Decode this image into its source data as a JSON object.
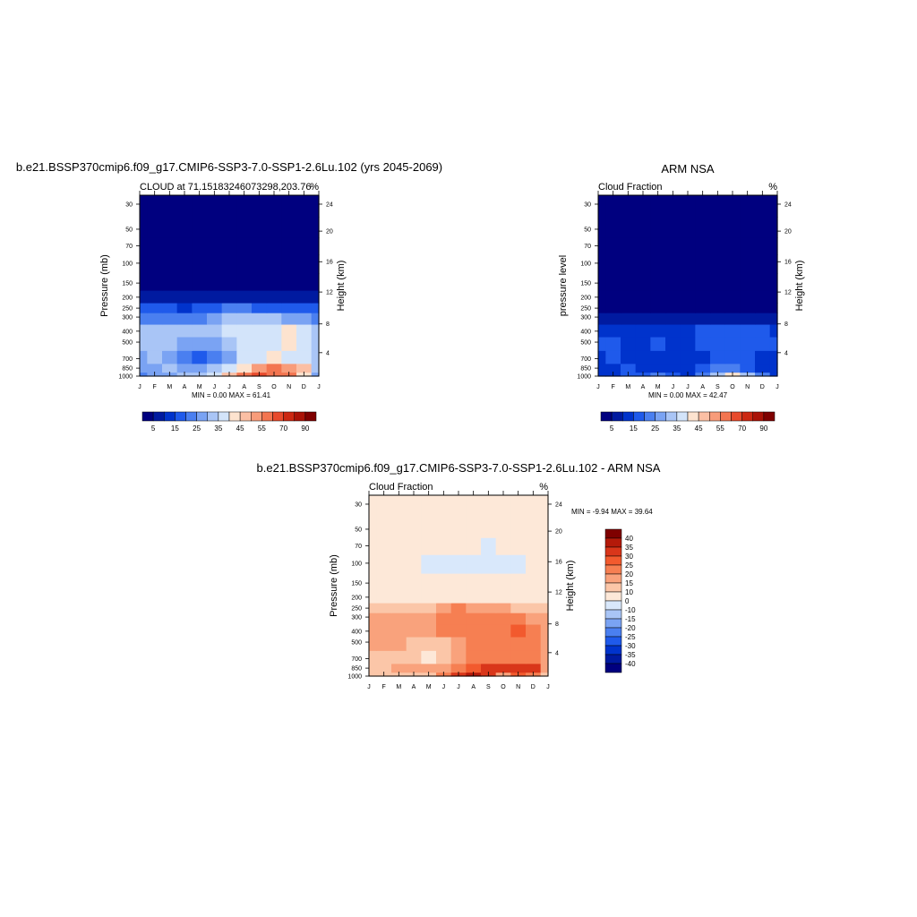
{
  "panels": [
    {
      "title": "b.e21.BSSP370cmip6.f09_g17.CMIP6-SSP3-7.0-SSP1-2.6Lu.102 (yrs 2045-2069)",
      "left_string": "CLOUD at 71.15183246073298,203.76",
      "right_string": "%",
      "ylabel": "Pressure (mb)",
      "ylabel_right": "Height (km)",
      "minmax": "MIN =   0.00 MAX =  61.41"
    },
    {
      "title": "ARM NSA",
      "left_string": "Cloud Fraction",
      "right_string": "%",
      "ylabel": "pressure level",
      "ylabel_right": "Height (km)",
      "minmax": "MIN =   0.00 MAX =  42.47"
    },
    {
      "title": "b.e21.BSSP370cmip6.f09_g17.CMIP6-SSP3-7.0-SSP1-2.6Lu.102 - ARM NSA",
      "left_string": "Cloud Fraction",
      "right_string": "%",
      "ylabel": "Pressure (mb)",
      "ylabel_right": "Height (km)",
      "minmax": "MIN =  -9.94 MAX =  39.64"
    }
  ],
  "axes": {
    "months": [
      "J",
      "F",
      "M",
      "A",
      "M",
      "J",
      "J",
      "A",
      "S",
      "O",
      "N",
      "D",
      "J"
    ],
    "pressure_ticks": [
      "30",
      "50",
      "70",
      "100",
      "150",
      "200",
      "250",
      "300",
      "400",
      "500",
      "700",
      "850",
      "1000"
    ],
    "height_ticks": [
      "24",
      "20",
      "16",
      "12",
      "8",
      "4"
    ]
  },
  "colorbar_abs": {
    "labels": [
      "5",
      "15",
      "25",
      "35",
      "45",
      "55",
      "70",
      "90"
    ],
    "colors": [
      "#00007f",
      "#001aa0",
      "#0033cc",
      "#1f5aeb",
      "#4a7ff0",
      "#7aa3f3",
      "#a9c5f6",
      "#d3e4fa",
      "#fde3cf",
      "#fbbfa4",
      "#f89c7a",
      "#f37550",
      "#e84a2c",
      "#cc2812",
      "#aa1207",
      "#7f0000"
    ]
  },
  "colorbar_diff": {
    "labels": [
      "40",
      "35",
      "30",
      "25",
      "20",
      "15",
      "10",
      "0",
      "-10",
      "-15",
      "-20",
      "-25",
      "-30",
      "-35",
      "-40"
    ],
    "colors": [
      "#7f0000",
      "#b41a0a",
      "#d9361a",
      "#f25a2e",
      "#f67f52",
      "#f9a27c",
      "#fbc6a8",
      "#fde8d8",
      "#d9e8fb",
      "#a9c5f6",
      "#7aa3f3",
      "#4a7ff0",
      "#1f5aeb",
      "#0033cc",
      "#001aa0",
      "#00007f"
    ]
  },
  "chart_data": [
    {
      "type": "heatmap",
      "title": "b.e21.BSSP370cmip6.f09_g17.CMIP6-SSP3-7.0-SSP1-2.6Lu.102 (yrs 2045-2069)",
      "x": [
        "J",
        "F",
        "M",
        "A",
        "M",
        "J",
        "J",
        "A",
        "S",
        "O",
        "N",
        "D",
        "J"
      ],
      "y_pressure_mb": [
        1000,
        850,
        700,
        500,
        400,
        300,
        250,
        200,
        150,
        100,
        70,
        50,
        30
      ],
      "values": [
        [
          22,
          25,
          28,
          30,
          32,
          38,
          45,
          55,
          60,
          58,
          55,
          40,
          25
        ],
        [
          25,
          28,
          32,
          28,
          25,
          30,
          35,
          42,
          50,
          55,
          52,
          45,
          30
        ],
        [
          28,
          30,
          25,
          22,
          18,
          22,
          28,
          35,
          38,
          40,
          38,
          35,
          30
        ],
        [
          30,
          32,
          30,
          28,
          25,
          28,
          32,
          35,
          36,
          38,
          40,
          37,
          32
        ],
        [
          30,
          32,
          30,
          30,
          30,
          33,
          35,
          36,
          36,
          37,
          42,
          36,
          30
        ],
        [
          22,
          24,
          23,
          22,
          22,
          28,
          30,
          30,
          30,
          30,
          28,
          25,
          22
        ],
        [
          15,
          16,
          15,
          14,
          15,
          18,
          22,
          20,
          18,
          17,
          16,
          16,
          15
        ],
        [
          6,
          6,
          6,
          5,
          5,
          6,
          6,
          6,
          6,
          6,
          6,
          6,
          8
        ],
        [
          1,
          1,
          1,
          1,
          1,
          1,
          1,
          1,
          1,
          1,
          1,
          1,
          1
        ],
        [
          0,
          0,
          0,
          0,
          0,
          0,
          0,
          0,
          0,
          0,
          0,
          0,
          0
        ],
        [
          0,
          0,
          0,
          0,
          0,
          0,
          0,
          0,
          0,
          0,
          0,
          0,
          0
        ],
        [
          0,
          0,
          0,
          0,
          0,
          0,
          0,
          0,
          0,
          0,
          0,
          0,
          0
        ],
        [
          0,
          0,
          0,
          0,
          0,
          0,
          0,
          0,
          0,
          0,
          0,
          0,
          0
        ]
      ],
      "min": 0.0,
      "max": 61.41
    },
    {
      "type": "heatmap",
      "title": "ARM NSA",
      "x": [
        "J",
        "F",
        "M",
        "A",
        "M",
        "J",
        "J",
        "A",
        "S",
        "O",
        "N",
        "D",
        "J"
      ],
      "y_pressure_mb": [
        1000,
        850,
        700,
        500,
        400,
        300,
        250,
        200,
        150,
        100,
        70,
        50,
        30
      ],
      "values": [
        [
          10,
          12,
          15,
          18,
          22,
          15,
          12,
          20,
          30,
          40,
          30,
          20,
          12
        ],
        [
          12,
          14,
          16,
          12,
          10,
          12,
          12,
          15,
          20,
          22,
          18,
          14,
          12
        ],
        [
          14,
          16,
          12,
          10,
          12,
          10,
          10,
          12,
          15,
          17,
          16,
          14,
          14
        ],
        [
          15,
          16,
          14,
          14,
          15,
          14,
          14,
          15,
          16,
          17,
          18,
          17,
          15
        ],
        [
          12,
          14,
          14,
          13,
          13,
          13,
          14,
          15,
          16,
          16,
          17,
          15,
          12
        ],
        [
          6,
          7,
          6,
          6,
          6,
          7,
          8,
          8,
          8,
          7,
          7,
          6,
          6
        ],
        [
          2,
          2,
          2,
          2,
          2,
          2,
          2,
          2,
          2,
          2,
          2,
          2,
          2
        ],
        [
          0,
          0,
          0,
          0,
          0,
          0,
          0,
          0,
          0,
          0,
          0,
          0,
          0
        ],
        [
          0,
          0,
          0,
          0,
          0,
          0,
          0,
          0,
          0,
          0,
          0,
          0,
          0
        ],
        [
          0,
          0,
          0,
          0,
          0,
          0,
          0,
          0,
          0,
          0,
          0,
          0,
          0
        ],
        [
          0,
          0,
          0,
          0,
          0,
          0,
          0,
          0,
          0,
          0,
          0,
          0,
          0
        ],
        [
          0,
          0,
          0,
          0,
          0,
          0,
          0,
          0,
          0,
          0,
          0,
          0,
          0
        ],
        [
          0,
          0,
          0,
          0,
          0,
          0,
          0,
          0,
          0,
          0,
          0,
          0,
          0
        ]
      ],
      "min": 0.0,
      "max": 42.47
    },
    {
      "type": "heatmap",
      "title": "b.e21.BSSP370cmip6.f09_g17.CMIP6-SSP3-7.0-SSP1-2.6Lu.102 - ARM NSA",
      "x": [
        "J",
        "F",
        "M",
        "A",
        "M",
        "J",
        "J",
        "A",
        "S",
        "O",
        "N",
        "D",
        "J"
      ],
      "y_pressure_mb": [
        1000,
        850,
        700,
        500,
        400,
        300,
        250,
        200,
        150,
        100,
        70,
        50,
        30
      ],
      "values": [
        [
          12,
          13,
          13,
          12,
          10,
          23,
          33,
          35,
          30,
          18,
          25,
          20,
          13
        ],
        [
          13,
          14,
          16,
          16,
          15,
          18,
          23,
          27,
          30,
          33,
          34,
          31,
          18
        ],
        [
          14,
          14,
          13,
          12,
          6,
          12,
          18,
          23,
          23,
          23,
          22,
          21,
          16
        ],
        [
          15,
          16,
          16,
          14,
          10,
          14,
          18,
          20,
          21,
          21,
          22,
          20,
          17
        ],
        [
          18,
          18,
          16,
          17,
          17,
          20,
          21,
          21,
          20,
          21,
          25,
          21,
          18
        ],
        [
          16,
          17,
          17,
          15,
          16,
          21,
          22,
          22,
          22,
          22,
          21,
          19,
          16
        ],
        [
          13,
          14,
          13,
          12,
          13,
          16,
          20,
          18,
          16,
          16,
          14,
          14,
          13
        ],
        [
          6,
          6,
          6,
          5,
          5,
          6,
          6,
          6,
          6,
          6,
          6,
          6,
          6
        ],
        [
          1,
          1,
          1,
          1,
          1,
          1,
          1,
          1,
          1,
          1,
          1,
          1,
          1
        ],
        [
          1,
          1,
          1,
          1,
          -1,
          -1,
          -1,
          -1,
          -1,
          -1,
          -1,
          1,
          1
        ],
        [
          1,
          1,
          1,
          1,
          1,
          1,
          1,
          1,
          -1,
          1,
          1,
          1,
          1
        ],
        [
          1,
          1,
          1,
          1,
          1,
          1,
          1,
          1,
          1,
          1,
          1,
          1,
          1
        ],
        [
          1,
          1,
          1,
          1,
          1,
          1,
          1,
          1,
          1,
          1,
          1,
          1,
          1
        ]
      ],
      "min": -9.94,
      "max": 39.64
    }
  ]
}
